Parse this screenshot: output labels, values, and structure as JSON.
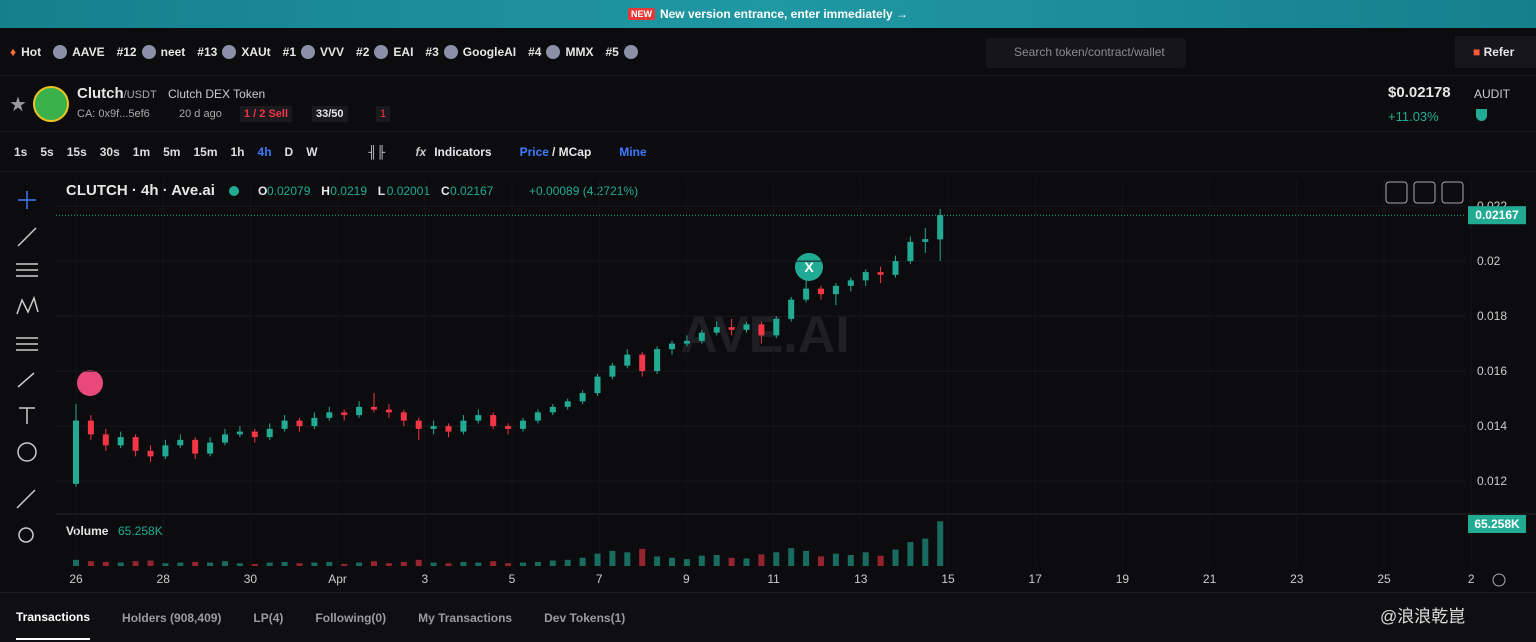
{
  "banner": {
    "badge": "NEW",
    "text": "New version entrance, enter immediately →"
  },
  "hot_bar": {
    "label": "Hot",
    "items": [
      {
        "rank": null,
        "name": "AAVE"
      },
      {
        "rank": "#12",
        "name": "neet"
      },
      {
        "rank": "#13",
        "name": "XAUt"
      },
      {
        "rank": "#1",
        "name": "VVV"
      },
      {
        "rank": "#2",
        "name": "EAI"
      },
      {
        "rank": "#3",
        "name": "GoogleAI"
      },
      {
        "rank": "#4",
        "name": "MMX"
      },
      {
        "rank": "#5",
        "name": null
      }
    ],
    "search_placeholder": "Search token/contract/wallet",
    "refer": "Refer"
  },
  "token": {
    "symbol": "Clutch",
    "pair": "/USDT",
    "full_name": "Clutch DEX Token",
    "contract": "CA: 0x9f...5ef6",
    "age": "20 d ago",
    "tax": "1 / 2 Sell",
    "holders_score": "33/50",
    "alerts": "1",
    "price": "$0.02178",
    "change": "+11.03%",
    "audit": "AUDIT"
  },
  "toolbar": {
    "intervals": [
      "1s",
      "5s",
      "15s",
      "30s",
      "1m",
      "5m",
      "15m",
      "1h",
      "4h",
      "D",
      "W"
    ],
    "active_interval": 8,
    "indicators": "Indicators",
    "price": "Price",
    "mcap": "/ MCap",
    "mine": "Mine"
  },
  "chart_data": {
    "type": "candlestick",
    "title": "CLUTCH · 4h · Ave.ai",
    "watermark": "AVE.AI",
    "ohlc": [
      {
        "key": "O",
        "value": "0.02079"
      },
      {
        "key": "H",
        "value": "0.0219"
      },
      {
        "key": "L",
        "value": "0.02001"
      },
      {
        "key": "C",
        "value": "0.02167"
      }
    ],
    "change": "+0.00089 (4.2721%)",
    "last_price": 0.02167,
    "x_labels": [
      "26",
      "28",
      "30",
      "Apr",
      "3",
      "5",
      "7",
      "9",
      "11",
      "13",
      "15",
      "17",
      "19",
      "21",
      "23",
      "25",
      "2"
    ],
    "ylim": [
      0.01084,
      0.02295
    ],
    "yticks": [
      0.012,
      0.014,
      0.016,
      0.018,
      0.02,
      0.022
    ],
    "colors": {
      "up": "#22ab94",
      "down": "#f23645"
    },
    "candles": [
      [
        0.0119,
        0.0148,
        0.0118,
        0.0142
      ],
      [
        0.0142,
        0.0144,
        0.0135,
        0.0137
      ],
      [
        0.0137,
        0.0139,
        0.0131,
        0.0133
      ],
      [
        0.0133,
        0.0138,
        0.0132,
        0.0136
      ],
      [
        0.0136,
        0.0137,
        0.0129,
        0.0131
      ],
      [
        0.0131,
        0.0133,
        0.0127,
        0.0129
      ],
      [
        0.0129,
        0.0135,
        0.0128,
        0.0133
      ],
      [
        0.0133,
        0.0137,
        0.0132,
        0.0135
      ],
      [
        0.0135,
        0.0136,
        0.0128,
        0.013
      ],
      [
        0.013,
        0.0136,
        0.0129,
        0.0134
      ],
      [
        0.0134,
        0.0139,
        0.0133,
        0.0137
      ],
      [
        0.0137,
        0.014,
        0.0136,
        0.0138
      ],
      [
        0.0138,
        0.0139,
        0.0134,
        0.0136
      ],
      [
        0.0136,
        0.0141,
        0.0135,
        0.0139
      ],
      [
        0.0139,
        0.0144,
        0.0138,
        0.0142
      ],
      [
        0.0142,
        0.0143,
        0.0138,
        0.014
      ],
      [
        0.014,
        0.0145,
        0.0139,
        0.0143
      ],
      [
        0.0143,
        0.0147,
        0.0142,
        0.0145
      ],
      [
        0.0145,
        0.0146,
        0.0142,
        0.0144
      ],
      [
        0.0144,
        0.0149,
        0.0143,
        0.0147
      ],
      [
        0.0147,
        0.0152,
        0.0145,
        0.0146
      ],
      [
        0.0146,
        0.0148,
        0.0143,
        0.0145
      ],
      [
        0.0145,
        0.0146,
        0.014,
        0.0142
      ],
      [
        0.0142,
        0.0143,
        0.0135,
        0.0139
      ],
      [
        0.0139,
        0.0142,
        0.0137,
        0.014
      ],
      [
        0.014,
        0.0141,
        0.0136,
        0.0138
      ],
      [
        0.0138,
        0.0144,
        0.0137,
        0.0142
      ],
      [
        0.0142,
        0.0146,
        0.0141,
        0.0144
      ],
      [
        0.0144,
        0.0145,
        0.0139,
        0.014
      ],
      [
        0.014,
        0.0141,
        0.0137,
        0.0139
      ],
      [
        0.0139,
        0.0143,
        0.0138,
        0.0142
      ],
      [
        0.0142,
        0.0146,
        0.0141,
        0.0145
      ],
      [
        0.0145,
        0.0148,
        0.0144,
        0.0147
      ],
      [
        0.0147,
        0.015,
        0.0146,
        0.0149
      ],
      [
        0.0149,
        0.0153,
        0.0148,
        0.0152
      ],
      [
        0.0152,
        0.0159,
        0.0151,
        0.0158
      ],
      [
        0.0158,
        0.0163,
        0.0157,
        0.0162
      ],
      [
        0.0162,
        0.0168,
        0.0161,
        0.0166
      ],
      [
        0.0166,
        0.0167,
        0.0158,
        0.016
      ],
      [
        0.016,
        0.0169,
        0.0159,
        0.0168
      ],
      [
        0.0168,
        0.0171,
        0.0166,
        0.017
      ],
      [
        0.017,
        0.0173,
        0.0169,
        0.0171
      ],
      [
        0.0171,
        0.0175,
        0.017,
        0.0174
      ],
      [
        0.0174,
        0.0178,
        0.0173,
        0.0176
      ],
      [
        0.0176,
        0.0179,
        0.0173,
        0.0175
      ],
      [
        0.0175,
        0.0178,
        0.0174,
        0.0177
      ],
      [
        0.0177,
        0.0178,
        0.017,
        0.0173
      ],
      [
        0.0173,
        0.018,
        0.0172,
        0.0179
      ],
      [
        0.0179,
        0.0187,
        0.0178,
        0.0186
      ],
      [
        0.0186,
        0.0193,
        0.0185,
        0.019
      ],
      [
        0.019,
        0.0191,
        0.0186,
        0.0188
      ],
      [
        0.0188,
        0.0192,
        0.0184,
        0.0191
      ],
      [
        0.0191,
        0.0194,
        0.0189,
        0.0193
      ],
      [
        0.0193,
        0.0197,
        0.0191,
        0.0196
      ],
      [
        0.0196,
        0.0198,
        0.0192,
        0.0195
      ],
      [
        0.0195,
        0.0202,
        0.0194,
        0.02
      ],
      [
        0.02,
        0.0209,
        0.0199,
        0.0207
      ],
      [
        0.0207,
        0.0212,
        0.0203,
        0.0208
      ],
      [
        0.02079,
        0.0219,
        0.02001,
        0.02167
      ]
    ],
    "volume": {
      "label": "Volume",
      "last_label": "65.258K",
      "ylim": [
        0,
        70000
      ],
      "values": [
        9000,
        7000,
        6000,
        5000,
        7000,
        8000,
        4000,
        5000,
        6000,
        5000,
        7000,
        4000,
        3000,
        5000,
        6000,
        4000,
        5000,
        6000,
        3000,
        5000,
        7000,
        4000,
        6000,
        9000,
        5000,
        4000,
        6000,
        5000,
        7000,
        4000,
        5000,
        6000,
        8000,
        9000,
        12000,
        18000,
        22000,
        20000,
        25000,
        14000,
        12000,
        10000,
        15000,
        16000,
        12000,
        11000,
        17000,
        20000,
        26000,
        22000,
        14000,
        18000,
        16000,
        20000,
        15000,
        24000,
        35000,
        40000,
        65258
      ]
    }
  },
  "tabs": [
    "Transactions",
    "Holders (908,409)",
    "LP(4)",
    "Following(0)",
    "My Transactions",
    "Dev Tokens(1)"
  ],
  "footer_watermark": "@浪浪乾崑"
}
